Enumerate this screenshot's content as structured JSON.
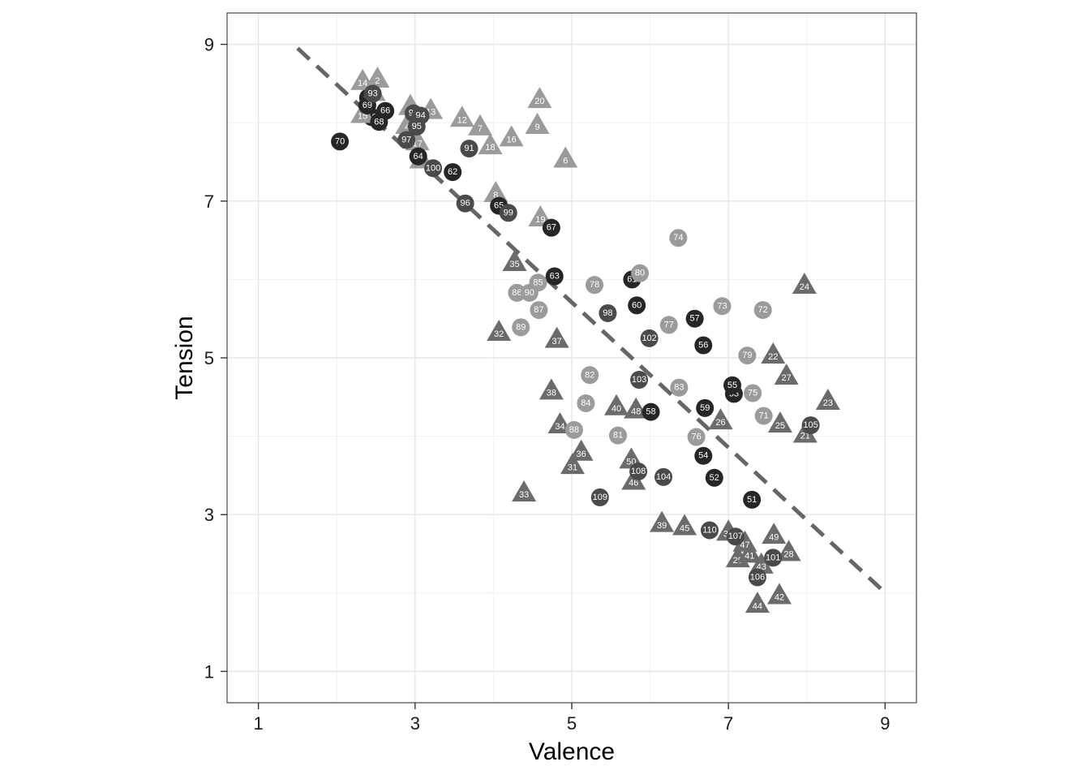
{
  "chart_data": {
    "type": "scatter",
    "xlabel": "Valence",
    "ylabel": "Tension",
    "xlim": [
      0.6,
      9.4
    ],
    "ylim": [
      0.6,
      9.4
    ],
    "x_ticks": [
      1,
      3,
      5,
      7,
      9
    ],
    "y_ticks": [
      1,
      3,
      5,
      7,
      9
    ],
    "x_tick_labels": [
      "1",
      "3",
      "5",
      "7",
      "9"
    ],
    "y_tick_labels": [
      "1",
      "3",
      "5",
      "7",
      "9"
    ],
    "grid": true,
    "legend": "none",
    "trend_line": {
      "style": "dashed",
      "color": "#666666",
      "x1": 1.5,
      "y1": 8.95,
      "x2": 8.95,
      "y2": 2.05
    },
    "colors": {
      "triangle_light": "#9b9b9b",
      "triangle_dark": "#6b6b6b",
      "circle_black": "#262626",
      "circle_dark": "#4a4a4a",
      "circle_light": "#9b9b9b"
    },
    "points": [
      {
        "id": "1",
        "x": 2.4,
        "y": 8.32,
        "shape": "circle",
        "color": "#262626"
      },
      {
        "id": "2",
        "x": 2.52,
        "y": 8.55,
        "shape": "triangle",
        "color": "#9b9b9b"
      },
      {
        "id": "3",
        "x": 2.94,
        "y": 8.2,
        "shape": "triangle",
        "color": "#9b9b9b"
      },
      {
        "id": "4",
        "x": 2.9,
        "y": 7.96,
        "shape": "triangle",
        "color": "#9b9b9b"
      },
      {
        "id": "5",
        "x": 3.08,
        "y": 7.52,
        "shape": "triangle",
        "color": "#9b9b9b"
      },
      {
        "id": "6",
        "x": 4.92,
        "y": 7.53,
        "shape": "triangle",
        "color": "#9b9b9b"
      },
      {
        "id": "7",
        "x": 3.83,
        "y": 7.94,
        "shape": "triangle",
        "color": "#9b9b9b"
      },
      {
        "id": "8",
        "x": 4.03,
        "y": 7.09,
        "shape": "triangle",
        "color": "#9b9b9b"
      },
      {
        "id": "9",
        "x": 4.56,
        "y": 7.96,
        "shape": "triangle",
        "color": "#9b9b9b"
      },
      {
        "id": "10",
        "x": 2.45,
        "y": 8.07,
        "shape": "circle",
        "color": "#262626"
      },
      {
        "id": "11",
        "x": 2.47,
        "y": 8.38,
        "shape": "triangle",
        "color": "#9b9b9b"
      },
      {
        "id": "12",
        "x": 3.6,
        "y": 8.05,
        "shape": "triangle",
        "color": "#9b9b9b"
      },
      {
        "id": "13",
        "x": 3.2,
        "y": 8.15,
        "shape": "triangle",
        "color": "#9b9b9b"
      },
      {
        "id": "14",
        "x": 2.33,
        "y": 8.52,
        "shape": "triangle",
        "color": "#9b9b9b"
      },
      {
        "id": "15",
        "x": 2.33,
        "y": 8.1,
        "shape": "triangle",
        "color": "#9b9b9b"
      },
      {
        "id": "16",
        "x": 4.23,
        "y": 7.8,
        "shape": "triangle",
        "color": "#9b9b9b"
      },
      {
        "id": "17",
        "x": 3.03,
        "y": 7.75,
        "shape": "triangle",
        "color": "#9b9b9b"
      },
      {
        "id": "18",
        "x": 3.96,
        "y": 7.7,
        "shape": "triangle",
        "color": "#9b9b9b"
      },
      {
        "id": "19",
        "x": 4.6,
        "y": 6.78,
        "shape": "triangle",
        "color": "#9b9b9b"
      },
      {
        "id": "20",
        "x": 4.59,
        "y": 8.29,
        "shape": "triangle",
        "color": "#9b9b9b"
      },
      {
        "id": "21",
        "x": 7.98,
        "y": 4.02,
        "shape": "triangle",
        "color": "#6b6b6b"
      },
      {
        "id": "22",
        "x": 7.57,
        "y": 5.03,
        "shape": "triangle",
        "color": "#6b6b6b"
      },
      {
        "id": "23",
        "x": 8.27,
        "y": 4.44,
        "shape": "triangle",
        "color": "#6b6b6b"
      },
      {
        "id": "24",
        "x": 7.97,
        "y": 5.92,
        "shape": "triangle",
        "color": "#6b6b6b"
      },
      {
        "id": "25",
        "x": 7.66,
        "y": 4.15,
        "shape": "triangle",
        "color": "#6b6b6b"
      },
      {
        "id": "26",
        "x": 6.9,
        "y": 4.19,
        "shape": "triangle",
        "color": "#6b6b6b"
      },
      {
        "id": "27",
        "x": 7.74,
        "y": 4.76,
        "shape": "triangle",
        "color": "#6b6b6b"
      },
      {
        "id": "28",
        "x": 7.77,
        "y": 2.51,
        "shape": "triangle",
        "color": "#6b6b6b"
      },
      {
        "id": "29",
        "x": 7.12,
        "y": 2.43,
        "shape": "triangle",
        "color": "#6b6b6b"
      },
      {
        "id": "30",
        "x": 7.0,
        "y": 2.77,
        "shape": "triangle",
        "color": "#6b6b6b"
      },
      {
        "id": "31",
        "x": 5.01,
        "y": 3.62,
        "shape": "triangle",
        "color": "#6b6b6b"
      },
      {
        "id": "32",
        "x": 4.07,
        "y": 5.32,
        "shape": "triangle",
        "color": "#6b6b6b"
      },
      {
        "id": "33",
        "x": 4.39,
        "y": 3.27,
        "shape": "triangle",
        "color": "#6b6b6b"
      },
      {
        "id": "34",
        "x": 4.85,
        "y": 4.14,
        "shape": "triangle",
        "color": "#6b6b6b"
      },
      {
        "id": "35",
        "x": 4.27,
        "y": 6.21,
        "shape": "triangle",
        "color": "#6b6b6b"
      },
      {
        "id": "36",
        "x": 5.12,
        "y": 3.79,
        "shape": "triangle",
        "color": "#6b6b6b"
      },
      {
        "id": "37",
        "x": 4.81,
        "y": 5.23,
        "shape": "triangle",
        "color": "#6b6b6b"
      },
      {
        "id": "38",
        "x": 4.74,
        "y": 4.57,
        "shape": "triangle",
        "color": "#6b6b6b"
      },
      {
        "id": "39",
        "x": 6.15,
        "y": 2.88,
        "shape": "triangle",
        "color": "#6b6b6b"
      },
      {
        "id": "40",
        "x": 5.57,
        "y": 4.37,
        "shape": "triangle",
        "color": "#6b6b6b"
      },
      {
        "id": "41",
        "x": 7.27,
        "y": 2.49,
        "shape": "triangle",
        "color": "#6b6b6b"
      },
      {
        "id": "42",
        "x": 7.65,
        "y": 1.96,
        "shape": "triangle",
        "color": "#6b6b6b"
      },
      {
        "id": "43",
        "x": 7.42,
        "y": 2.35,
        "shape": "triangle",
        "color": "#6b6b6b"
      },
      {
        "id": "44",
        "x": 7.37,
        "y": 1.85,
        "shape": "triangle",
        "color": "#6b6b6b"
      },
      {
        "id": "45",
        "x": 6.44,
        "y": 2.84,
        "shape": "triangle",
        "color": "#6b6b6b"
      },
      {
        "id": "46",
        "x": 5.79,
        "y": 3.42,
        "shape": "triangle",
        "color": "#6b6b6b"
      },
      {
        "id": "47",
        "x": 7.21,
        "y": 2.63,
        "shape": "triangle",
        "color": "#6b6b6b"
      },
      {
        "id": "48",
        "x": 5.82,
        "y": 4.33,
        "shape": "triangle",
        "color": "#6b6b6b"
      },
      {
        "id": "49",
        "x": 7.58,
        "y": 2.73,
        "shape": "triangle",
        "color": "#6b6b6b"
      },
      {
        "id": "50",
        "x": 5.76,
        "y": 3.69,
        "shape": "triangle",
        "color": "#6b6b6b"
      },
      {
        "id": "51",
        "x": 7.3,
        "y": 3.19,
        "shape": "circle",
        "color": "#262626"
      },
      {
        "id": "52",
        "x": 6.82,
        "y": 3.47,
        "shape": "circle",
        "color": "#262626"
      },
      {
        "id": "53",
        "x": 7.07,
        "y": 4.54,
        "shape": "circle",
        "color": "#262626"
      },
      {
        "id": "54",
        "x": 6.68,
        "y": 3.75,
        "shape": "circle",
        "color": "#262626"
      },
      {
        "id": "55",
        "x": 7.05,
        "y": 4.65,
        "shape": "circle",
        "color": "#262626"
      },
      {
        "id": "56",
        "x": 6.68,
        "y": 5.16,
        "shape": "circle",
        "color": "#262626"
      },
      {
        "id": "57",
        "x": 6.57,
        "y": 5.5,
        "shape": "circle",
        "color": "#262626"
      },
      {
        "id": "58",
        "x": 6.01,
        "y": 4.31,
        "shape": "circle",
        "color": "#262626"
      },
      {
        "id": "59",
        "x": 6.7,
        "y": 4.36,
        "shape": "circle",
        "color": "#262626"
      },
      {
        "id": "60",
        "x": 5.83,
        "y": 5.67,
        "shape": "circle",
        "color": "#262626"
      },
      {
        "id": "61",
        "x": 5.77,
        "y": 6.0,
        "shape": "circle",
        "color": "#262626"
      },
      {
        "id": "62",
        "x": 3.48,
        "y": 7.37,
        "shape": "circle",
        "color": "#262626"
      },
      {
        "id": "63",
        "x": 4.78,
        "y": 6.04,
        "shape": "circle",
        "color": "#262626"
      },
      {
        "id": "64",
        "x": 3.04,
        "y": 7.57,
        "shape": "circle",
        "color": "#262626"
      },
      {
        "id": "65",
        "x": 4.07,
        "y": 6.94,
        "shape": "circle",
        "color": "#262626"
      },
      {
        "id": "66",
        "x": 2.62,
        "y": 8.15,
        "shape": "circle",
        "color": "#262626"
      },
      {
        "id": "67",
        "x": 4.74,
        "y": 6.66,
        "shape": "circle",
        "color": "#262626"
      },
      {
        "id": "68",
        "x": 2.54,
        "y": 8.01,
        "shape": "circle",
        "color": "#262626"
      },
      {
        "id": "69",
        "x": 2.39,
        "y": 8.22,
        "shape": "circle",
        "color": "#262626"
      },
      {
        "id": "70",
        "x": 2.04,
        "y": 7.76,
        "shape": "circle",
        "color": "#262626"
      },
      {
        "id": "71",
        "x": 7.45,
        "y": 4.26,
        "shape": "circle",
        "color": "#9b9b9b"
      },
      {
        "id": "72",
        "x": 7.44,
        "y": 5.61,
        "shape": "circle",
        "color": "#9b9b9b"
      },
      {
        "id": "73",
        "x": 6.92,
        "y": 5.66,
        "shape": "circle",
        "color": "#9b9b9b"
      },
      {
        "id": "74",
        "x": 6.36,
        "y": 6.53,
        "shape": "circle",
        "color": "#9b9b9b"
      },
      {
        "id": "75",
        "x": 7.31,
        "y": 4.55,
        "shape": "circle",
        "color": "#9b9b9b"
      },
      {
        "id": "76",
        "x": 6.59,
        "y": 3.99,
        "shape": "circle",
        "color": "#9b9b9b"
      },
      {
        "id": "77",
        "x": 6.24,
        "y": 5.42,
        "shape": "circle",
        "color": "#9b9b9b"
      },
      {
        "id": "78",
        "x": 5.29,
        "y": 5.93,
        "shape": "circle",
        "color": "#9b9b9b"
      },
      {
        "id": "79",
        "x": 7.24,
        "y": 5.03,
        "shape": "circle",
        "color": "#9b9b9b"
      },
      {
        "id": "80",
        "x": 5.87,
        "y": 6.08,
        "shape": "circle",
        "color": "#9b9b9b"
      },
      {
        "id": "81",
        "x": 5.59,
        "y": 4.01,
        "shape": "circle",
        "color": "#9b9b9b"
      },
      {
        "id": "82",
        "x": 5.23,
        "y": 4.78,
        "shape": "circle",
        "color": "#9b9b9b"
      },
      {
        "id": "83",
        "x": 6.37,
        "y": 4.62,
        "shape": "circle",
        "color": "#9b9b9b"
      },
      {
        "id": "84",
        "x": 5.18,
        "y": 4.42,
        "shape": "circle",
        "color": "#9b9b9b"
      },
      {
        "id": "85",
        "x": 4.57,
        "y": 5.96,
        "shape": "circle",
        "color": "#9b9b9b"
      },
      {
        "id": "86",
        "x": 4.3,
        "y": 5.83,
        "shape": "circle",
        "color": "#9b9b9b"
      },
      {
        "id": "87",
        "x": 4.58,
        "y": 5.61,
        "shape": "circle",
        "color": "#9b9b9b"
      },
      {
        "id": "88",
        "x": 5.03,
        "y": 4.08,
        "shape": "circle",
        "color": "#9b9b9b"
      },
      {
        "id": "89",
        "x": 4.35,
        "y": 5.39,
        "shape": "circle",
        "color": "#9b9b9b"
      },
      {
        "id": "90",
        "x": 4.46,
        "y": 5.83,
        "shape": "circle",
        "color": "#9b9b9b"
      },
      {
        "id": "91",
        "x": 3.69,
        "y": 7.67,
        "shape": "circle",
        "color": "#4a4a4a"
      },
      {
        "id": "92",
        "x": 2.98,
        "y": 8.12,
        "shape": "circle",
        "color": "#4a4a4a"
      },
      {
        "id": "93",
        "x": 2.46,
        "y": 8.37,
        "shape": "circle",
        "color": "#4a4a4a"
      },
      {
        "id": "94",
        "x": 3.07,
        "y": 8.09,
        "shape": "circle",
        "color": "#4a4a4a"
      },
      {
        "id": "95",
        "x": 3.02,
        "y": 7.95,
        "shape": "circle",
        "color": "#4a4a4a"
      },
      {
        "id": "96",
        "x": 3.64,
        "y": 6.97,
        "shape": "circle",
        "color": "#4a4a4a"
      },
      {
        "id": "97",
        "x": 2.89,
        "y": 7.78,
        "shape": "circle",
        "color": "#4a4a4a"
      },
      {
        "id": "98",
        "x": 5.46,
        "y": 5.57,
        "shape": "circle",
        "color": "#4a4a4a"
      },
      {
        "id": "99",
        "x": 4.19,
        "y": 6.85,
        "shape": "circle",
        "color": "#4a4a4a"
      },
      {
        "id": "100",
        "x": 3.23,
        "y": 7.42,
        "shape": "circle",
        "color": "#4a4a4a"
      },
      {
        "id": "101",
        "x": 7.57,
        "y": 2.45,
        "shape": "circle",
        "color": "#4a4a4a"
      },
      {
        "id": "102",
        "x": 5.99,
        "y": 5.25,
        "shape": "circle",
        "color": "#4a4a4a"
      },
      {
        "id": "103",
        "x": 5.86,
        "y": 4.72,
        "shape": "circle",
        "color": "#4a4a4a"
      },
      {
        "id": "104",
        "x": 6.17,
        "y": 3.48,
        "shape": "circle",
        "color": "#4a4a4a"
      },
      {
        "id": "105",
        "x": 8.05,
        "y": 4.14,
        "shape": "circle",
        "color": "#4a4a4a"
      },
      {
        "id": "106",
        "x": 7.37,
        "y": 2.2,
        "shape": "circle",
        "color": "#4a4a4a"
      },
      {
        "id": "107",
        "x": 7.09,
        "y": 2.72,
        "shape": "circle",
        "color": "#4a4a4a"
      },
      {
        "id": "108",
        "x": 5.85,
        "y": 3.55,
        "shape": "circle",
        "color": "#4a4a4a"
      },
      {
        "id": "109",
        "x": 5.36,
        "y": 3.22,
        "shape": "circle",
        "color": "#4a4a4a"
      },
      {
        "id": "110",
        "x": 6.76,
        "y": 2.8,
        "shape": "circle",
        "color": "#4a4a4a"
      }
    ]
  }
}
